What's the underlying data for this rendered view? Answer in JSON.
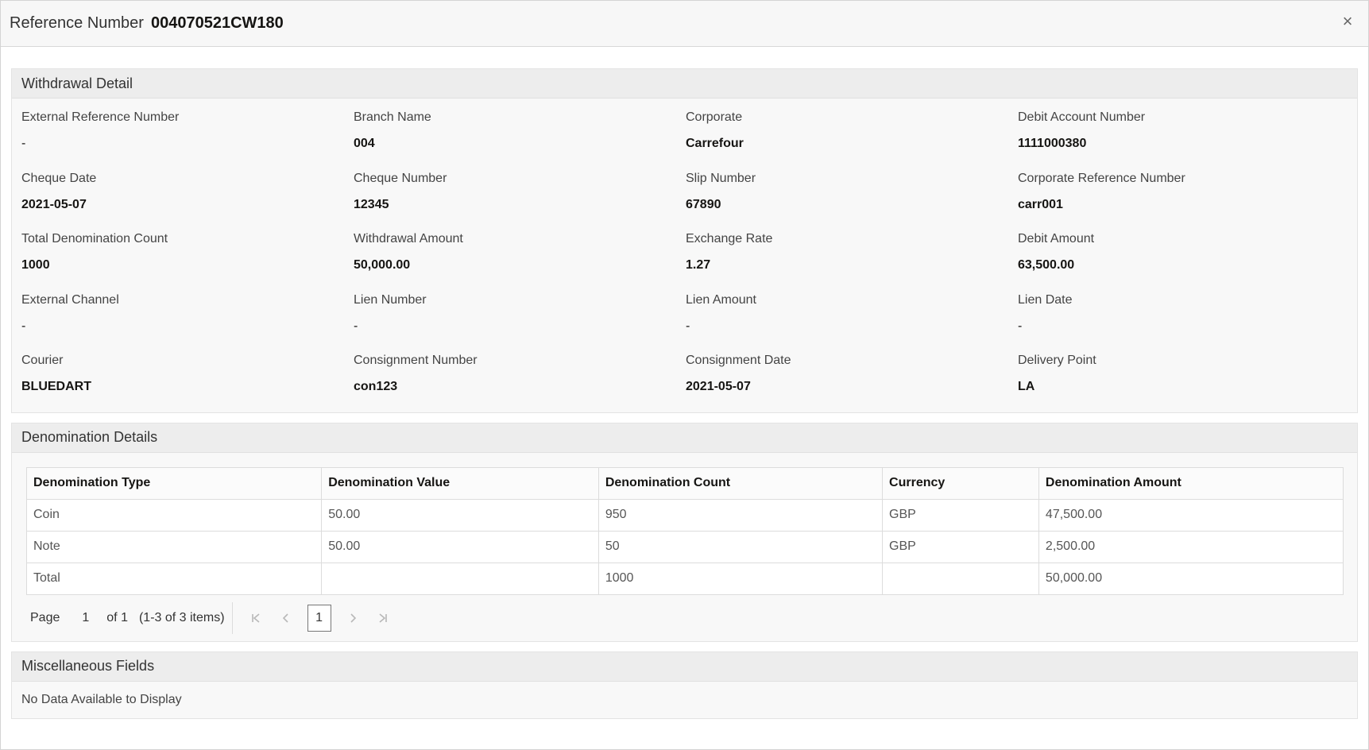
{
  "header": {
    "label": "Reference Number",
    "value": "004070521CW180",
    "close_icon": "×"
  },
  "withdrawal": {
    "title": "Withdrawal Detail",
    "fields": [
      {
        "label": "External Reference Number",
        "value": "-"
      },
      {
        "label": "Branch Name",
        "value": "004"
      },
      {
        "label": "Corporate",
        "value": "Carrefour"
      },
      {
        "label": "Debit Account Number",
        "value": "1111000380"
      },
      {
        "label": "Cheque Date",
        "value": "2021-05-07"
      },
      {
        "label": "Cheque Number",
        "value": "12345"
      },
      {
        "label": "Slip Number",
        "value": "67890"
      },
      {
        "label": "Corporate Reference Number",
        "value": "carr001"
      },
      {
        "label": "Total Denomination Count",
        "value": "1000"
      },
      {
        "label": "Withdrawal Amount",
        "value": "50,000.00"
      },
      {
        "label": "Exchange Rate",
        "value": "1.27"
      },
      {
        "label": "Debit Amount",
        "value": "63,500.00"
      },
      {
        "label": "External Channel",
        "value": "-"
      },
      {
        "label": "Lien Number",
        "value": "-"
      },
      {
        "label": "Lien Amount",
        "value": "-"
      },
      {
        "label": "Lien Date",
        "value": "-"
      },
      {
        "label": "Courier",
        "value": "BLUEDART"
      },
      {
        "label": "Consignment Number",
        "value": "con123"
      },
      {
        "label": "Consignment Date",
        "value": "2021-05-07"
      },
      {
        "label": "Delivery Point",
        "value": "LA"
      }
    ]
  },
  "denomination": {
    "title": "Denomination Details",
    "columns": [
      "Denomination Type",
      "Denomination Value",
      "Denomination Count",
      "Currency",
      "Denomination Amount"
    ],
    "rows": [
      [
        "Coin",
        "50.00",
        "950",
        "GBP",
        "47,500.00"
      ],
      [
        "Note",
        "50.00",
        "50",
        "GBP",
        "2,500.00"
      ],
      [
        "Total",
        "",
        "1000",
        "",
        "50,000.00"
      ]
    ],
    "pager": {
      "page_label": "Page",
      "page_number": "1",
      "of_label": "of 1",
      "items_label": "(1-3 of 3 items)",
      "current": "1",
      "first_icon": "first-page-icon",
      "prev_icon": "previous-page-icon",
      "next_icon": "next-page-icon",
      "last_icon": "last-page-icon"
    }
  },
  "misc": {
    "title": "Miscellaneous Fields",
    "empty_text": "No Data Available to Display"
  }
}
